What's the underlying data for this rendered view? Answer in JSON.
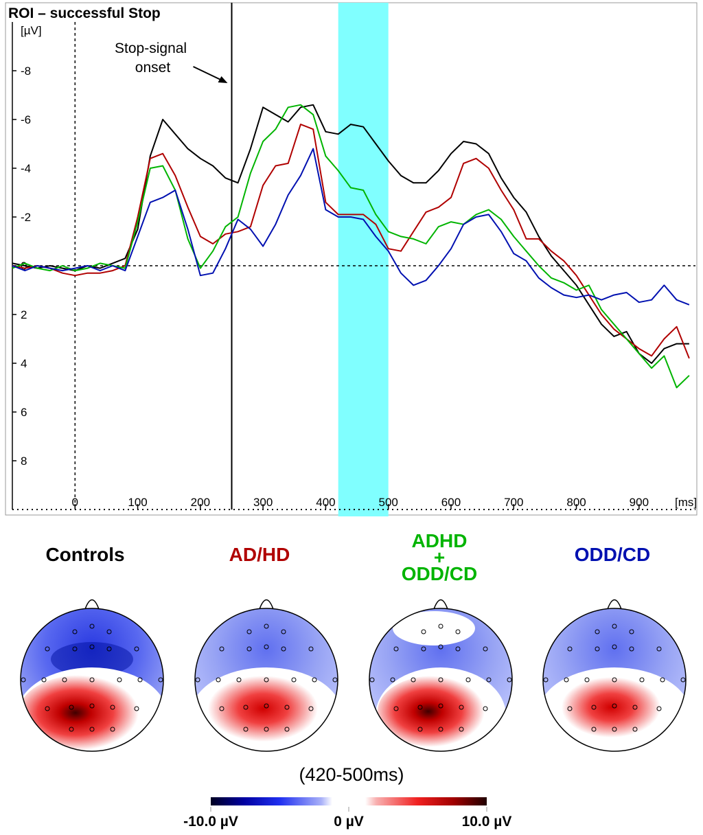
{
  "chart_data": {
    "type": "line",
    "title": "ROI – successful Stop",
    "xlabel": "[ms]",
    "ylabel": "[µV]",
    "y_inverted": true,
    "xlim": [
      -100,
      990
    ],
    "ylim": [
      -10,
      10
    ],
    "xticks": [
      0,
      100,
      200,
      300,
      400,
      500,
      600,
      700,
      800,
      900
    ],
    "yticks": [
      -8,
      -6,
      -4,
      -2,
      0,
      2,
      4,
      6,
      8
    ],
    "x": [
      -100,
      -80,
      -60,
      -40,
      -20,
      0,
      20,
      40,
      60,
      80,
      100,
      120,
      140,
      160,
      180,
      200,
      220,
      240,
      260,
      280,
      300,
      320,
      340,
      360,
      380,
      400,
      420,
      440,
      460,
      480,
      500,
      520,
      540,
      560,
      580,
      600,
      620,
      640,
      660,
      680,
      700,
      720,
      740,
      760,
      780,
      800,
      820,
      840,
      860,
      880,
      900,
      920,
      940,
      960,
      980
    ],
    "series": [
      {
        "name": "Controls",
        "color": "#000000",
        "values": [
          -0.1,
          0,
          0.1,
          0,
          0.1,
          0.2,
          0,
          0.1,
          -0.1,
          -0.3,
          -1.5,
          -4.5,
          -6,
          -5.4,
          -4.8,
          -4.4,
          -4.1,
          -3.6,
          -3.4,
          -4.8,
          -6.5,
          -6.2,
          -5.9,
          -6.5,
          -6.6,
          -5.5,
          -5.4,
          -5.8,
          -5.7,
          -5.0,
          -4.3,
          -3.7,
          -3.4,
          -3.4,
          -3.9,
          -4.6,
          -5.1,
          -5.0,
          -4.6,
          -3.6,
          -2.8,
          -2.2,
          -1.2,
          -0.4,
          0.2,
          0.8,
          1.6,
          2.4,
          2.9,
          2.7,
          3.6,
          4.0,
          3.4,
          3.2,
          3.2
        ]
      },
      {
        "name": "AD/HD",
        "color": "#b00000",
        "values": [
          0,
          0.1,
          0,
          0.1,
          0.3,
          0.4,
          0.3,
          0.3,
          0.2,
          0,
          -2,
          -4.4,
          -4.6,
          -3.7,
          -2.4,
          -1.2,
          -0.9,
          -1.3,
          -1.4,
          -1.6,
          -3.3,
          -4.1,
          -4.2,
          -5.8,
          -5.6,
          -2.6,
          -2.1,
          -2.1,
          -2.1,
          -1.7,
          -0.7,
          -0.6,
          -1.4,
          -2.2,
          -2.4,
          -2.8,
          -4.2,
          -4.4,
          -4.0,
          -3.1,
          -2.3,
          -1.1,
          -1.1,
          -0.6,
          -0.2,
          0.4,
          1.2,
          2.0,
          2.6,
          3.0,
          3.4,
          3.7,
          3.0,
          2.5,
          3.8
        ]
      },
      {
        "name": "ADHD\n+\nODD/CD",
        "color": "#00b400",
        "values": [
          0.1,
          -0.1,
          0.1,
          0.2,
          0,
          0.2,
          0.1,
          -0.1,
          0,
          0.1,
          -1.8,
          -4.0,
          -4.1,
          -3.1,
          -1.1,
          0.1,
          -0.6,
          -1.6,
          -2.0,
          -3.8,
          -5.1,
          -5.6,
          -6.5,
          -6.6,
          -6.2,
          -4.5,
          -3.9,
          -3.2,
          -3.1,
          -2.1,
          -1.4,
          -1.2,
          -1.1,
          -0.9,
          -1.6,
          -1.8,
          -1.7,
          -2.1,
          -2.3,
          -1.9,
          -1.2,
          -0.6,
          0,
          0.5,
          0.7,
          1.0,
          0.8,
          1.8,
          2.4,
          3.0,
          3.6,
          4.2,
          3.7,
          5.0,
          4.5
        ]
      },
      {
        "name": "ODD/CD",
        "color": "#0010b0",
        "values": [
          0,
          0.2,
          0,
          0.1,
          0.2,
          0.1,
          0,
          0.2,
          0,
          0.2,
          -1.2,
          -2.6,
          -2.8,
          -3.1,
          -1.5,
          0.4,
          0.3,
          -0.7,
          -1.9,
          -1.5,
          -0.8,
          -1.7,
          -2.9,
          -3.7,
          -4.8,
          -2.3,
          -2.0,
          -2.0,
          -1.9,
          -1.2,
          -0.6,
          0.3,
          0.8,
          0.6,
          0,
          -0.7,
          -1.7,
          -2.0,
          -2.1,
          -1.4,
          -0.5,
          -0.2,
          0.5,
          0.9,
          1.2,
          1.3,
          1.2,
          1.4,
          1.2,
          1.1,
          1.5,
          1.4,
          0.8,
          1.4,
          1.6
        ]
      }
    ],
    "annotations": [
      {
        "text": "Stop-signal onset",
        "x": 250
      }
    ],
    "highlight": {
      "range": [
        420,
        500
      ],
      "color": "#80ffff"
    },
    "map_title": "(420-500ms)",
    "colorbar": {
      "clim": [
        -10,
        10
      ],
      "ticks": [
        {
          "value": -10,
          "label": "-10.0 µV"
        },
        {
          "value": 0,
          "label": "0 µV"
        },
        {
          "value": 10,
          "label": "10.0 µV"
        }
      ]
    }
  }
}
